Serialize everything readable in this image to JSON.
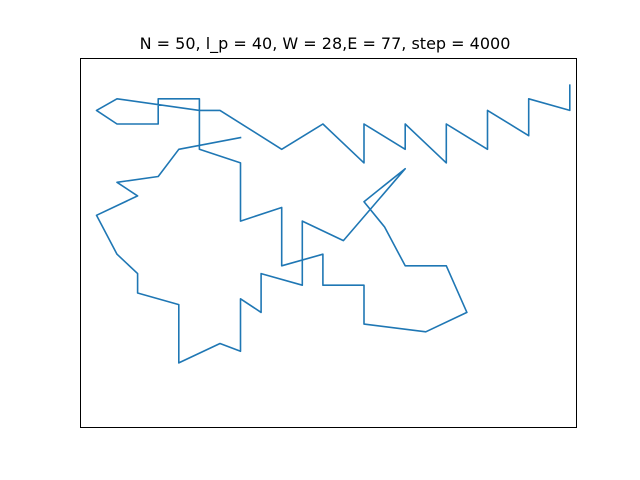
{
  "chart_data": {
    "type": "line",
    "title": "N = 50, l_p = 40, W = 28,E = 77, step = 4000",
    "xlabel": "",
    "ylabel": "",
    "xticks": false,
    "yticks": false,
    "grid": false,
    "line_color": "#1f77b4",
    "xlim": [
      -0.8,
      23.3
    ],
    "ylim": [
      -17.6,
      1.4
    ],
    "series": [
      {
        "x": [
          23,
          23,
          21,
          21,
          19,
          19,
          17,
          17,
          15,
          15,
          13,
          13,
          11,
          9,
          6,
          5,
          5,
          3,
          3,
          1,
          0,
          1,
          5,
          5,
          7,
          7,
          9,
          9,
          11,
          11,
          13,
          13,
          16,
          18,
          17,
          15,
          14,
          13,
          15,
          12,
          10,
          10,
          8,
          8,
          7,
          7,
          6,
          4,
          4,
          2,
          2,
          1,
          0,
          2,
          1,
          3,
          4,
          7
        ],
        "y": [
          0,
          -1.3,
          -0.7,
          -2.6,
          -1.3,
          -3.3,
          -2,
          -4,
          -2,
          -3.3,
          -2,
          -4,
          -2,
          -3.3,
          -1.3,
          -1.3,
          -0.7,
          -0.7,
          -2,
          -2,
          -1.3,
          -0.7,
          -1.3,
          -3.3,
          -4,
          -7,
          -6.3,
          -9.3,
          -8.7,
          -10.3,
          -10.3,
          -12.3,
          -12.7,
          -11.7,
          -9.3,
          -9.3,
          -7.3,
          -6,
          -4.3,
          -8,
          -7,
          -10.3,
          -9.7,
          -11.7,
          -11,
          -13.7,
          -13.3,
          -14.3,
          -11.3,
          -10.7,
          -9.7,
          -8.7,
          -6.7,
          -5.7,
          -5,
          -4.7,
          -3.3,
          -2.7
        ]
      }
    ]
  }
}
